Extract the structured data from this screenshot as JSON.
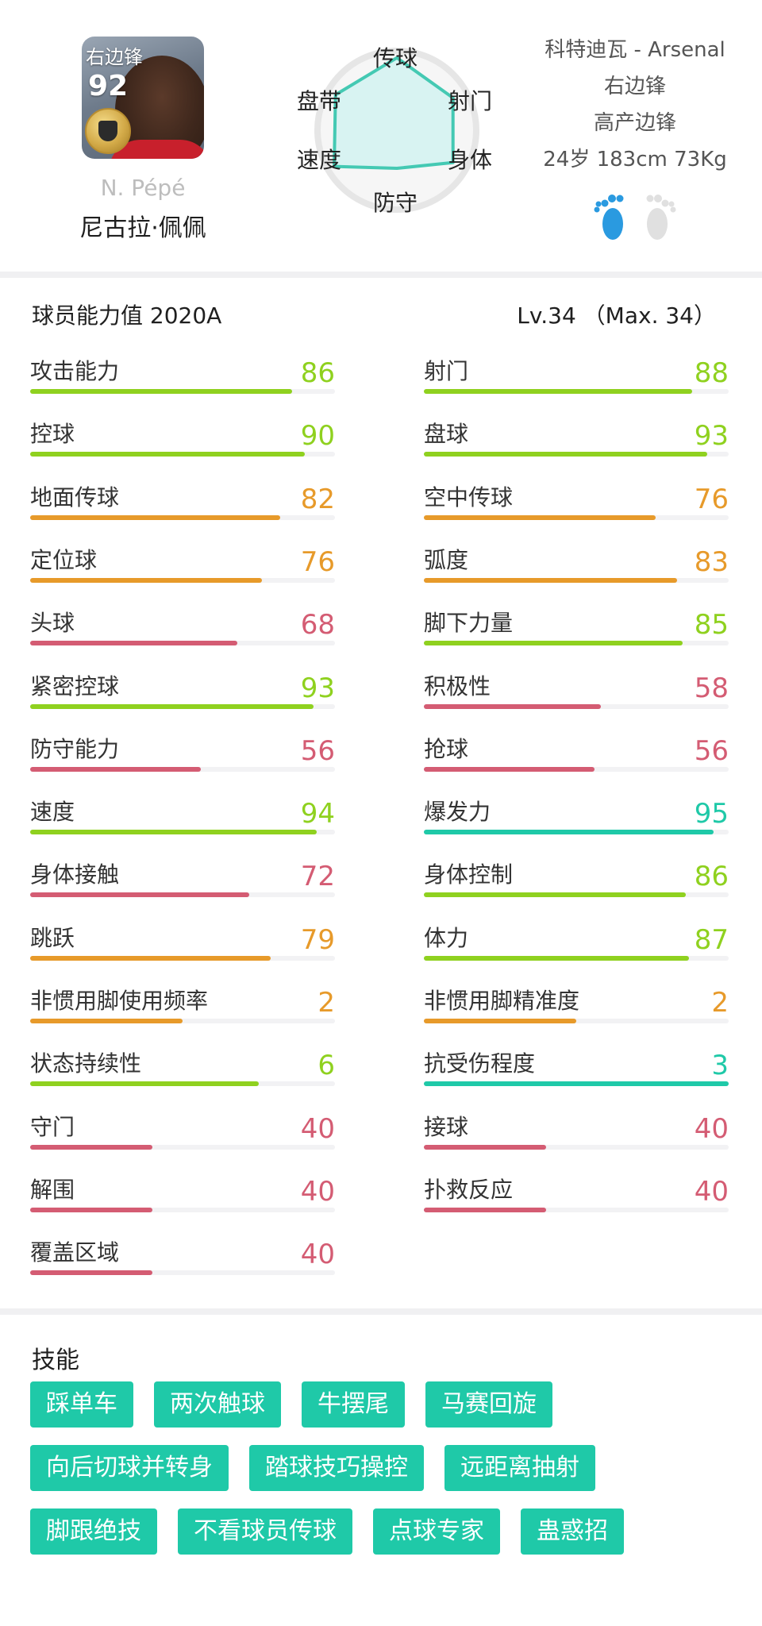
{
  "player": {
    "card_position": "右边锋",
    "overall": "92",
    "name_en": "N. Pépé",
    "name_cn": "尼古拉·佩佩",
    "club_line": "科特迪瓦 - Arsenal",
    "position": "右边锋",
    "style": "高产边锋",
    "body_line": "24岁 183cm 73Kg",
    "icons": {
      "card_badge": "gold-medal-icon",
      "feet": "feet-icon"
    }
  },
  "radar": {
    "labels": [
      "传球",
      "射门",
      "身体",
      "防守",
      "速度",
      "盘带"
    ],
    "values": [
      0.95,
      0.85,
      0.85,
      0.5,
      0.95,
      0.93
    ],
    "colors": {
      "fill": "#d8f3f2",
      "stroke": "#44c9b3",
      "ring": "#e6e6e6"
    }
  },
  "stats": {
    "title": "球员能力值 2020A",
    "level": "Lv.34 （Max. 34）",
    "max": 100,
    "left": [
      {
        "label": "攻击能力",
        "value": "86",
        "color": "#8fd11f",
        "fraction": 0.86
      },
      {
        "label": "控球",
        "value": "90",
        "color": "#8fd11f",
        "fraction": 0.9
      },
      {
        "label": "地面传球",
        "value": "82",
        "color": "#e79a2a",
        "fraction": 0.82
      },
      {
        "label": "定位球",
        "value": "76",
        "color": "#e79a2a",
        "fraction": 0.76
      },
      {
        "label": "头球",
        "value": "68",
        "color": "#d45c73",
        "fraction": 0.68
      },
      {
        "label": "紧密控球",
        "value": "93",
        "color": "#8fd11f",
        "fraction": 0.93
      },
      {
        "label": "防守能力",
        "value": "56",
        "color": "#d45c73",
        "fraction": 0.56
      },
      {
        "label": "速度",
        "value": "94",
        "color": "#8fd11f",
        "fraction": 0.94
      },
      {
        "label": "身体接触",
        "value": "72",
        "color": "#d45c73",
        "fraction": 0.72
      },
      {
        "label": "跳跃",
        "value": "79",
        "color": "#e79a2a",
        "fraction": 0.79
      },
      {
        "label": "非惯用脚使用频率",
        "value": "2",
        "color": "#e79a2a",
        "fraction": 0.5
      },
      {
        "label": "状态持续性",
        "value": "6",
        "color": "#8fd11f",
        "fraction": 0.75
      },
      {
        "label": "守门",
        "value": "40",
        "color": "#d45c73",
        "fraction": 0.4
      },
      {
        "label": "解围",
        "value": "40",
        "color": "#d45c73",
        "fraction": 0.4
      },
      {
        "label": "覆盖区域",
        "value": "40",
        "color": "#d45c73",
        "fraction": 0.4
      }
    ],
    "right": [
      {
        "label": "射门",
        "value": "88",
        "color": "#8fd11f",
        "fraction": 0.88
      },
      {
        "label": "盘球",
        "value": "93",
        "color": "#8fd11f",
        "fraction": 0.93
      },
      {
        "label": "空中传球",
        "value": "76",
        "color": "#e79a2a",
        "fraction": 0.76
      },
      {
        "label": "弧度",
        "value": "83",
        "color": "#e79a2a",
        "fraction": 0.83
      },
      {
        "label": "脚下力量",
        "value": "85",
        "color": "#8fd11f",
        "fraction": 0.85
      },
      {
        "label": "积极性",
        "value": "58",
        "color": "#d45c73",
        "fraction": 0.58
      },
      {
        "label": "抢球",
        "value": "56",
        "color": "#d45c73",
        "fraction": 0.56
      },
      {
        "label": "爆发力",
        "value": "95",
        "color": "#1fc9a8",
        "fraction": 0.95
      },
      {
        "label": "身体控制",
        "value": "86",
        "color": "#8fd11f",
        "fraction": 0.86
      },
      {
        "label": "体力",
        "value": "87",
        "color": "#8fd11f",
        "fraction": 0.87
      },
      {
        "label": "非惯用脚精准度",
        "value": "2",
        "color": "#e79a2a",
        "fraction": 0.5
      },
      {
        "label": "抗受伤程度",
        "value": "3",
        "color": "#1fc9a8",
        "fraction": 1.0
      },
      {
        "label": "接球",
        "value": "40",
        "color": "#d45c73",
        "fraction": 0.4
      },
      {
        "label": "扑救反应",
        "value": "40",
        "color": "#d45c73",
        "fraction": 0.4
      }
    ]
  },
  "skills": {
    "title": "技能",
    "color": "#1fc9a8",
    "rows": [
      [
        "踩单车",
        "两次触球",
        "牛摆尾",
        "马赛回旋"
      ],
      [
        "向后切球并转身",
        "踏球技巧操控",
        "远距离抽射"
      ],
      [
        "脚跟绝技",
        "不看球员传球",
        "点球专家",
        "蛊惑招"
      ]
    ]
  }
}
